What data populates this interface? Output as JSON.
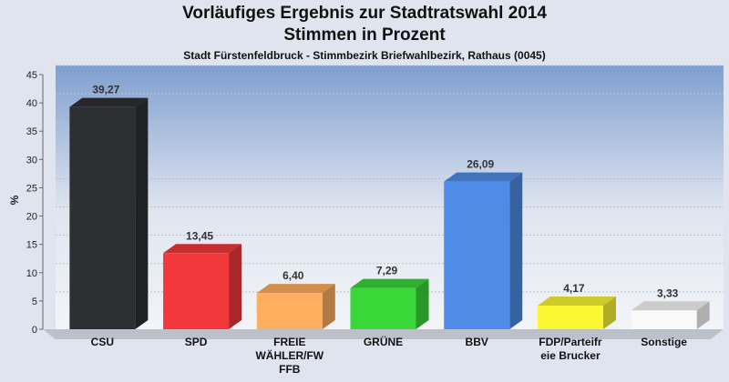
{
  "chart_data": {
    "type": "bar",
    "title": "Vorläufiges Ergebnis zur Stadtratswahl 2014",
    "subtitle": "Stimmen in Prozent",
    "description": "Stadt Fürstenfeldbruck - Stimmbezirk Briefwahlbezirk, Rathaus (0045)",
    "ylabel": "%",
    "xlabel": "",
    "ylim": [
      0,
      45
    ],
    "yticks": [
      0,
      5,
      10,
      15,
      20,
      25,
      30,
      35,
      40,
      45
    ],
    "grid": true,
    "categories": [
      [
        "CSU"
      ],
      [
        "SPD"
      ],
      [
        "FREIE",
        "WÄHLER/FW",
        "FFB"
      ],
      [
        "GRÜNE"
      ],
      [
        "BBV"
      ],
      [
        "FDP/Parteifr",
        "eie Brucker"
      ],
      [
        "Sonstige"
      ]
    ],
    "values": [
      39.27,
      13.45,
      6.4,
      7.29,
      26.09,
      4.17,
      3.33
    ],
    "value_labels": [
      "39,27",
      "13,45",
      "6,40",
      "7,29",
      "26,09",
      "4,17",
      "3,33"
    ],
    "colors": [
      "#2e2f33",
      "#f2383b",
      "#ffad5e",
      "#39d738",
      "#4f8ce8",
      "#fbf632",
      "#f9f9f9"
    ]
  }
}
